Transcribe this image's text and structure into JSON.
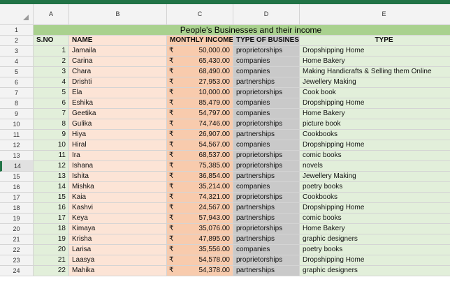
{
  "columns": [
    "A",
    "B",
    "C",
    "D",
    "E"
  ],
  "title": "People's Businesses and their income",
  "headers": {
    "sno": "S.NO",
    "name": "NAME",
    "income": "MONTHLY INCOME",
    "business": "TYPE OF BUSINESS",
    "type": "TYPE"
  },
  "currency_symbol": "₹",
  "rows": [
    {
      "n": "1",
      "name": "Jamaila",
      "income": "50,000.00",
      "business": "proprietorships",
      "type": "Dropshipping Home"
    },
    {
      "n": "2",
      "name": "Carina",
      "income": "65,430.00",
      "business": "companies",
      "type": "Home Bakery"
    },
    {
      "n": "3",
      "name": "Chara",
      "income": "68,490.00",
      "business": "companies",
      "type": "Making Handicrafts & Selling them Online"
    },
    {
      "n": "4",
      "name": "Drishti",
      "income": "27,953.00",
      "business": "partnerships",
      "type": "Jewellery Making"
    },
    {
      "n": "5",
      "name": "Ela",
      "income": "10,000.00",
      "business": "proprietorships",
      "type": "Cook book"
    },
    {
      "n": "6",
      "name": "Eshika",
      "income": "85,479.00",
      "business": "companies",
      "type": "Dropshipping Home"
    },
    {
      "n": "7",
      "name": "Geetika",
      "income": "54,797.00",
      "business": "companies",
      "type": "Home Bakery"
    },
    {
      "n": "8",
      "name": "Gulika",
      "income": "74,746.00",
      "business": "proprietorships",
      "type": "picture book"
    },
    {
      "n": "9",
      "name": "Hiya",
      "income": "26,907.00",
      "business": "partnerships",
      "type": "Cookbooks"
    },
    {
      "n": "10",
      "name": "Hiral",
      "income": "54,567.00",
      "business": "companies",
      "type": "Dropshipping Home"
    },
    {
      "n": "11",
      "name": "Ira",
      "income": "68,537.00",
      "business": "proprietorships",
      "type": "comic books"
    },
    {
      "n": "12",
      "name": "Ishana",
      "income": "75,385.00",
      "business": "proprietorships",
      "type": "novels"
    },
    {
      "n": "13",
      "name": "Ishita",
      "income": "36,854.00",
      "business": "partnerships",
      "type": "Jewellery Making"
    },
    {
      "n": "14",
      "name": "Mishka",
      "income": "35,214.00",
      "business": "companies",
      "type": "poetry books"
    },
    {
      "n": "15",
      "name": "Kaia",
      "income": "74,321.00",
      "business": "proprietorships",
      "type": "Cookbooks"
    },
    {
      "n": "16",
      "name": "Kashvi",
      "income": "24,567.00",
      "business": "partnerships",
      "type": "Dropshipping Home"
    },
    {
      "n": "17",
      "name": "Keya",
      "income": "57,943.00",
      "business": "partnerships",
      "type": "comic books"
    },
    {
      "n": "18",
      "name": "Kimaya",
      "income": "35,076.00",
      "business": "proprietorships",
      "type": "Home Bakery"
    },
    {
      "n": "19",
      "name": "Krisha",
      "income": "47,895.00",
      "business": "partnerships",
      "type": "graphic designers"
    },
    {
      "n": "20",
      "name": "Larisa",
      "income": "35,556.00",
      "business": "companies",
      "type": "poetry books"
    },
    {
      "n": "21",
      "name": "Laasya",
      "income": "54,578.00",
      "business": "proprietorships",
      "type": "Dropshipping Home"
    },
    {
      "n": "22",
      "name": "Mahika",
      "income": "54,378.00",
      "business": "partnerships",
      "type": "graphic designers"
    }
  ],
  "row_numbers": [
    "1",
    "2",
    "3",
    "4",
    "5",
    "6",
    "7",
    "8",
    "9",
    "10",
    "11",
    "12",
    "13",
    "14",
    "15",
    "16",
    "17",
    "18",
    "19",
    "20",
    "21",
    "22",
    "23",
    "24"
  ],
  "selected_row": "14",
  "colors": {
    "ribbon": "#217346",
    "title_bg": "#a9d18e",
    "name_bg": "#fce4d6",
    "income_bg": "#f8cbad",
    "business_bg": "#c9c9c9",
    "type_bg": "#e2efda"
  }
}
